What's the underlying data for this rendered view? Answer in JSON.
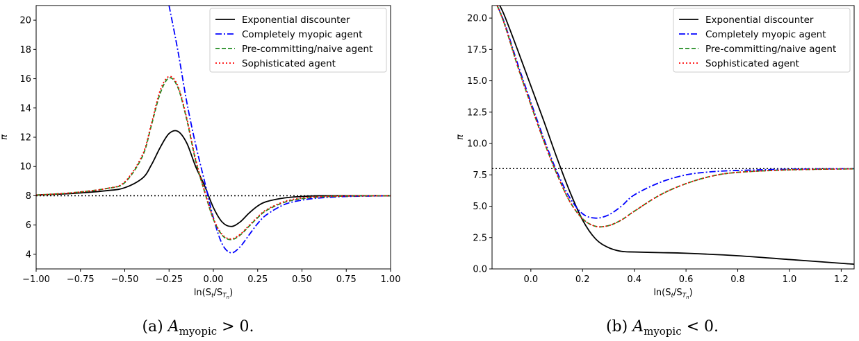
{
  "chart_data": [
    {
      "type": "line",
      "caption": "(a) A_myopic > 0.",
      "xlabel": "ln(S_t/S_{T_n})",
      "ylabel": "π",
      "xlim": [
        -1.0,
        1.0
      ],
      "ylim": [
        3.0,
        21.0
      ],
      "xticks": [
        "−1.00",
        "−0.75",
        "−0.50",
        "−0.25",
        "0.00",
        "0.25",
        "0.50",
        "0.75",
        "1.00"
      ],
      "xtick_values": [
        -1.0,
        -0.75,
        -0.5,
        -0.25,
        0.0,
        0.25,
        0.5,
        0.75,
        1.0
      ],
      "yticks": [
        "4",
        "6",
        "8",
        "10",
        "12",
        "14",
        "16",
        "18",
        "20"
      ],
      "ytick_values": [
        4,
        6,
        8,
        10,
        12,
        14,
        16,
        18,
        20
      ],
      "grid": false,
      "legend_position": "top-right",
      "hline": 8.0,
      "series": [
        {
          "name": "Exponential discounter",
          "color": "#000000",
          "style": "solid",
          "x": [
            -1.0,
            -0.8,
            -0.6,
            -0.5,
            -0.4,
            -0.35,
            -0.3,
            -0.25,
            -0.2,
            -0.15,
            -0.1,
            -0.05,
            0.0,
            0.05,
            0.1,
            0.15,
            0.2,
            0.25,
            0.3,
            0.4,
            0.5,
            0.6,
            0.75,
            1.0
          ],
          "y": [
            8.05,
            8.15,
            8.35,
            8.55,
            9.2,
            10.1,
            11.3,
            12.25,
            12.4,
            11.6,
            10.0,
            8.7,
            7.2,
            6.2,
            5.9,
            6.2,
            6.8,
            7.3,
            7.6,
            7.85,
            7.95,
            8.0,
            8.0,
            8.0
          ]
        },
        {
          "name": "Completely myopic agent",
          "color": "#0000ff",
          "style": "dashdot",
          "x": [
            -0.25,
            -0.2,
            -0.15,
            -0.1,
            -0.05,
            0.0,
            0.05,
            0.1,
            0.15,
            0.2,
            0.25,
            0.3,
            0.4,
            0.5,
            0.6,
            0.75,
            1.0
          ],
          "y": [
            21.0,
            17.9,
            14.4,
            11.5,
            9.0,
            6.5,
            4.7,
            4.1,
            4.5,
            5.3,
            6.1,
            6.7,
            7.4,
            7.7,
            7.85,
            7.95,
            8.0
          ]
        },
        {
          "name": "Pre-committing/naive agent",
          "color": "#228b22",
          "style": "dashed",
          "x": [
            -1.0,
            -0.8,
            -0.6,
            -0.5,
            -0.4,
            -0.35,
            -0.3,
            -0.25,
            -0.2,
            -0.15,
            -0.1,
            -0.05,
            0.0,
            0.05,
            0.1,
            0.15,
            0.2,
            0.25,
            0.3,
            0.4,
            0.5,
            0.6,
            0.75,
            1.0
          ],
          "y": [
            8.05,
            8.2,
            8.5,
            8.9,
            10.7,
            12.8,
            15.0,
            16.05,
            15.4,
            13.2,
            10.4,
            8.3,
            6.4,
            5.3,
            5.0,
            5.3,
            5.9,
            6.5,
            7.0,
            7.55,
            7.8,
            7.92,
            7.98,
            8.0
          ]
        },
        {
          "name": "Sophisticated agent",
          "color": "#ff0000",
          "style": "dotted",
          "x": [
            -1.0,
            -0.8,
            -0.6,
            -0.5,
            -0.4,
            -0.35,
            -0.3,
            -0.25,
            -0.2,
            -0.15,
            -0.1,
            -0.05,
            0.0,
            0.05,
            0.1,
            0.15,
            0.2,
            0.25,
            0.3,
            0.4,
            0.5,
            0.6,
            0.75,
            1.0
          ],
          "y": [
            8.05,
            8.2,
            8.5,
            8.95,
            10.8,
            12.9,
            15.2,
            16.15,
            15.5,
            13.3,
            10.5,
            8.35,
            6.45,
            5.35,
            5.05,
            5.35,
            5.95,
            6.55,
            7.05,
            7.6,
            7.85,
            7.93,
            7.98,
            8.0
          ]
        }
      ]
    },
    {
      "type": "line",
      "caption": "(b) A_myopic < 0.",
      "xlabel": "ln(S_t/S_{T_n})",
      "ylabel": "π",
      "xlim": [
        -0.15,
        1.25
      ],
      "ylim": [
        0.0,
        21.0
      ],
      "xticks": [
        "0.0",
        "0.2",
        "0.4",
        "0.6",
        "0.8",
        "1.0",
        "1.2"
      ],
      "xtick_values": [
        0.0,
        0.2,
        0.4,
        0.6,
        0.8,
        1.0,
        1.2
      ],
      "yticks": [
        "0.0",
        "2.5",
        "5.0",
        "7.5",
        "10.0",
        "12.5",
        "15.0",
        "17.5",
        "20.0"
      ],
      "ytick_values": [
        0.0,
        2.5,
        5.0,
        7.5,
        10.0,
        12.5,
        15.0,
        17.5,
        20.0
      ],
      "grid": false,
      "legend_position": "top-right",
      "hline": 8.0,
      "series": [
        {
          "name": "Exponential discounter",
          "color": "#000000",
          "style": "solid",
          "x": [
            -0.12,
            -0.1,
            -0.05,
            0.0,
            0.05,
            0.1,
            0.15,
            0.2,
            0.25,
            0.3,
            0.35,
            0.4,
            0.5,
            0.6,
            0.8,
            1.0,
            1.2,
            1.25
          ],
          "y": [
            21.0,
            20.1,
            17.4,
            14.6,
            11.8,
            8.9,
            6.2,
            3.9,
            2.4,
            1.7,
            1.4,
            1.35,
            1.3,
            1.25,
            1.05,
            0.75,
            0.45,
            0.38
          ]
        },
        {
          "name": "Completely myopic agent",
          "color": "#0000ff",
          "style": "dashdot",
          "x": [
            -0.13,
            -0.1,
            -0.05,
            0.0,
            0.05,
            0.1,
            0.15,
            0.2,
            0.25,
            0.3,
            0.35,
            0.4,
            0.5,
            0.6,
            0.7,
            0.8,
            1.0,
            1.25
          ],
          "y": [
            21.0,
            19.5,
            16.3,
            13.3,
            10.4,
            7.8,
            5.7,
            4.4,
            4.05,
            4.3,
            5.0,
            5.9,
            6.9,
            7.5,
            7.75,
            7.85,
            7.95,
            8.0
          ]
        },
        {
          "name": "Pre-committing/naive agent",
          "color": "#228b22",
          "style": "dashed",
          "x": [
            -0.13,
            -0.1,
            -0.05,
            0.0,
            0.05,
            0.1,
            0.15,
            0.2,
            0.25,
            0.3,
            0.35,
            0.4,
            0.5,
            0.6,
            0.7,
            0.8,
            1.0,
            1.25
          ],
          "y": [
            21.0,
            19.4,
            16.1,
            13.1,
            10.2,
            7.6,
            5.4,
            4.0,
            3.4,
            3.45,
            3.9,
            4.6,
            5.9,
            6.8,
            7.4,
            7.7,
            7.9,
            7.98
          ]
        },
        {
          "name": "Sophisticated agent",
          "color": "#ff0000",
          "style": "dotted",
          "x": [
            -0.13,
            -0.1,
            -0.05,
            0.0,
            0.05,
            0.1,
            0.15,
            0.2,
            0.25,
            0.3,
            0.35,
            0.4,
            0.5,
            0.6,
            0.7,
            0.8,
            1.0,
            1.25
          ],
          "y": [
            21.0,
            19.4,
            16.1,
            13.1,
            10.2,
            7.6,
            5.4,
            4.0,
            3.4,
            3.45,
            3.9,
            4.6,
            5.9,
            6.8,
            7.4,
            7.7,
            7.9,
            7.98
          ]
        }
      ]
    }
  ]
}
